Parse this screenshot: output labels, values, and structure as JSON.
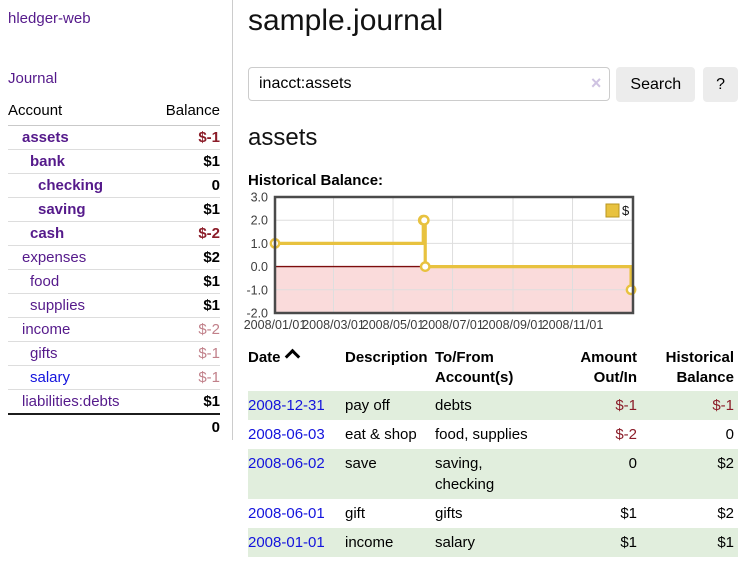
{
  "colors": {
    "purple": "#551a8b",
    "link_blue": "#1414dd",
    "neg_strong": "#8b1c28",
    "neg_soft": "#c1808a",
    "row_green": "#e1eedd"
  },
  "brand": "hledger-web",
  "nav": {
    "journal": "Journal"
  },
  "sidebar": {
    "headers": {
      "account": "Account",
      "balance": "Balance"
    },
    "accounts": [
      {
        "name": "assets",
        "balance": "$-1",
        "depth": 1,
        "strong": true,
        "tone": "neg-strong",
        "link": "purple"
      },
      {
        "name": "bank",
        "balance": "$1",
        "depth": 2,
        "strong": true,
        "tone": "plain",
        "link": "purple"
      },
      {
        "name": "checking",
        "balance": "0",
        "depth": 3,
        "strong": true,
        "tone": "plain",
        "link": "purple"
      },
      {
        "name": "saving",
        "balance": "$1",
        "depth": 3,
        "strong": true,
        "tone": "plain",
        "link": "purple"
      },
      {
        "name": "cash",
        "balance": "$-2",
        "depth": 2,
        "strong": true,
        "tone": "neg-strong",
        "link": "purple"
      },
      {
        "name": "expenses",
        "balance": "$2",
        "depth": 1,
        "strong": false,
        "tone": "plain",
        "link": "purple"
      },
      {
        "name": "food",
        "balance": "$1",
        "depth": 2,
        "strong": false,
        "tone": "plain",
        "link": "purple"
      },
      {
        "name": "supplies",
        "balance": "$1",
        "depth": 2,
        "strong": false,
        "tone": "plain",
        "link": "purple"
      },
      {
        "name": "income",
        "balance": "$-2",
        "depth": 1,
        "strong": false,
        "tone": "neg-soft",
        "link": "purple"
      },
      {
        "name": "gifts",
        "balance": "$-1",
        "depth": 2,
        "strong": false,
        "tone": "neg-soft",
        "link": "purple"
      },
      {
        "name": "salary",
        "balance": "$-1",
        "depth": 2,
        "strong": false,
        "tone": "neg-soft",
        "link": "blue"
      },
      {
        "name": "liabilities:debts",
        "balance": "$1",
        "depth": 1,
        "strong": false,
        "tone": "plain",
        "link": "purple"
      }
    ],
    "total": "0"
  },
  "main": {
    "title": "sample.journal",
    "search": {
      "value": "inacct:assets",
      "clear_icon": "×",
      "button_label": "Search",
      "help_label": "?"
    },
    "account_heading": "assets",
    "chart_label": "Historical Balance:"
  },
  "chart_data": {
    "type": "line",
    "step": true,
    "title": "Historical Balance:",
    "ylim": [
      -2,
      3
    ],
    "xlim_days": [
      0,
      367
    ],
    "yticks": [
      {
        "label": "3.0",
        "value": 3
      },
      {
        "label": "2.0",
        "value": 2
      },
      {
        "label": "1.0",
        "value": 1
      },
      {
        "label": "0.0",
        "value": 0
      },
      {
        "label": "-1.0",
        "value": -1
      },
      {
        "label": "-2.0",
        "value": -2
      }
    ],
    "xticks": [
      {
        "label": "2008/01/01",
        "day": 0
      },
      {
        "label": "2008/03/01",
        "day": 60
      },
      {
        "label": "2008/05/01",
        "day": 121
      },
      {
        "label": "2008/07/01",
        "day": 182
      },
      {
        "label": "2008/09/01",
        "day": 244
      },
      {
        "label": "2008/11/01",
        "day": 305
      }
    ],
    "series": [
      {
        "name": "$",
        "color": "#e8c23f",
        "points": [
          {
            "date": "2008-01-01",
            "day": 0,
            "value": 1
          },
          {
            "date": "2008-06-01",
            "day": 152,
            "value": 2
          },
          {
            "date": "2008-06-02",
            "day": 153,
            "value": 2
          },
          {
            "date": "2008-06-03",
            "day": 154,
            "value": 0
          },
          {
            "date": "2008-12-31",
            "day": 365,
            "value": -1
          }
        ]
      }
    ],
    "legend": {
      "label": "$",
      "position": "top-right"
    },
    "grid": true,
    "negative_region_color": "#f6b8b8",
    "zero_line_color": "#7d0d0d"
  },
  "register": {
    "headers": {
      "date": "Date",
      "sort_icon": "chevron-up-icon",
      "description": "Description",
      "tofrom_line1": "To/From",
      "tofrom_line2": "Account(s)",
      "amount_line1": "Amount",
      "amount_line2": "Out/In",
      "hist_line1": "Historical",
      "hist_line2": "Balance"
    },
    "rows": [
      {
        "date": "2008-12-31",
        "description": "pay off",
        "accounts": "debts",
        "amount": "$-1",
        "amount_neg": true,
        "balance": "$-1",
        "balance_neg": true,
        "shade": "green"
      },
      {
        "date": "2008-06-03",
        "description": "eat & shop",
        "accounts": "food, supplies",
        "amount": "$-2",
        "amount_neg": true,
        "balance": "0",
        "balance_neg": false,
        "shade": "white"
      },
      {
        "date": "2008-06-02",
        "description": "save",
        "accounts": "saving, checking",
        "amount": "0",
        "amount_neg": false,
        "balance": "$2",
        "balance_neg": false,
        "shade": "green"
      },
      {
        "date": "2008-06-01",
        "description": "gift",
        "accounts": "gifts",
        "amount": "$1",
        "amount_neg": false,
        "balance": "$2",
        "balance_neg": false,
        "shade": "white"
      },
      {
        "date": "2008-01-01",
        "description": "income",
        "accounts": "salary",
        "amount": "$1",
        "amount_neg": false,
        "balance": "$1",
        "balance_neg": false,
        "shade": "green"
      }
    ]
  }
}
